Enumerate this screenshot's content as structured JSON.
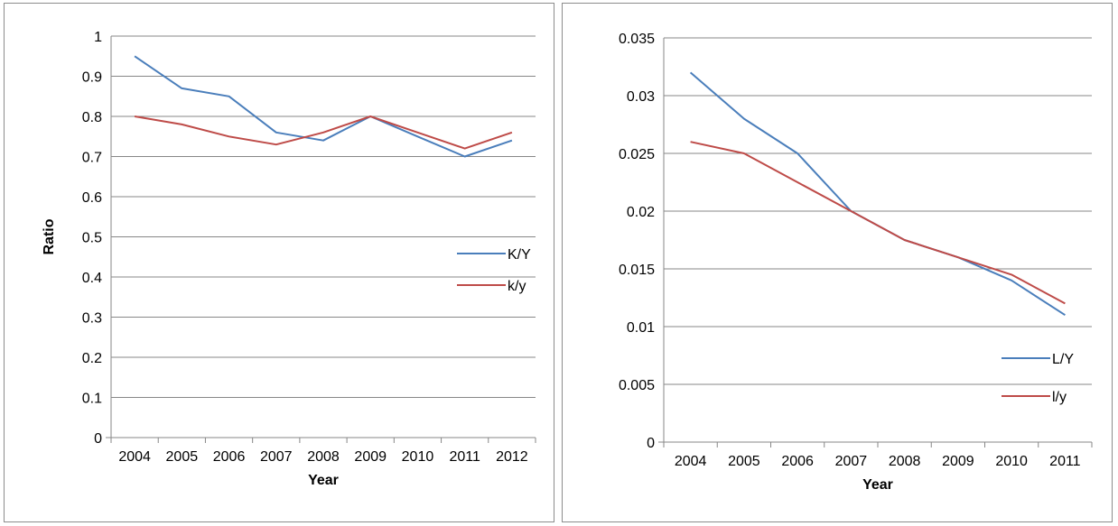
{
  "chart_data": [
    {
      "type": "line",
      "x": [
        "2004",
        "2005",
        "2006",
        "2007",
        "2008",
        "2009",
        "2010",
        "2011",
        "2012"
      ],
      "xlabel": "Year",
      "ylabel": "Ratio",
      "ylim": [
        0,
        1
      ],
      "yticks": [
        "0",
        "0.1",
        "0.2",
        "0.3",
        "0.4",
        "0.5",
        "0.6",
        "0.7",
        "0.8",
        "0.9",
        "1"
      ],
      "grid": "horizontal",
      "legend": "right",
      "series": [
        {
          "name": "K/Y",
          "color": "#4a7ebb",
          "values": [
            0.95,
            0.87,
            0.85,
            0.76,
            0.74,
            0.8,
            0.75,
            0.7,
            0.74
          ]
        },
        {
          "name": "k/y",
          "color": "#be4b48",
          "values": [
            0.8,
            0.78,
            0.75,
            0.73,
            0.76,
            0.8,
            0.76,
            0.72,
            0.76
          ]
        }
      ]
    },
    {
      "type": "line",
      "x": [
        "2004",
        "2005",
        "2006",
        "2007",
        "2008",
        "2009",
        "2010",
        "2011"
      ],
      "xlabel": "Year",
      "ylabel": "",
      "ylim": [
        0,
        0.035
      ],
      "yticks": [
        "0",
        "0.005",
        "0.01",
        "0.015",
        "0.02",
        "0.025",
        "0.03",
        "0.035"
      ],
      "grid": "horizontal",
      "legend": "bottom-right",
      "series": [
        {
          "name": "L/Y",
          "color": "#4a7ebb",
          "values": [
            0.032,
            0.028,
            0.025,
            0.02,
            0.0175,
            0.016,
            0.014,
            0.011
          ]
        },
        {
          "name": "l/y",
          "color": "#be4b48",
          "values": [
            0.026,
            0.025,
            0.0225,
            0.02,
            0.0175,
            0.016,
            0.0145,
            0.012
          ]
        }
      ]
    }
  ]
}
